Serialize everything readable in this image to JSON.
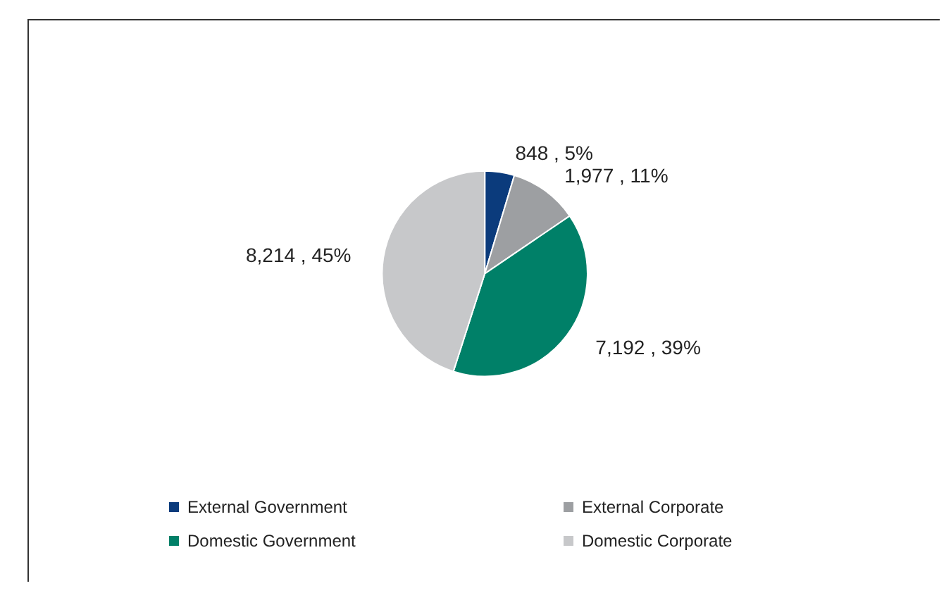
{
  "chart_data": {
    "type": "pie",
    "categories": [
      "External Government",
      "External Corporate",
      "Domestic Government",
      "Domestic Corporate"
    ],
    "values": [
      848,
      1977,
      7192,
      8214
    ],
    "colors": [
      "#0b3b7c",
      "#9d9fa2",
      "#008068",
      "#c7c8ca"
    ],
    "value_labels": [
      "848 , 5%",
      "1,977 , 11%",
      "7,192 , 39%",
      "8,214 , 45%"
    ],
    "legend": "bottom"
  }
}
